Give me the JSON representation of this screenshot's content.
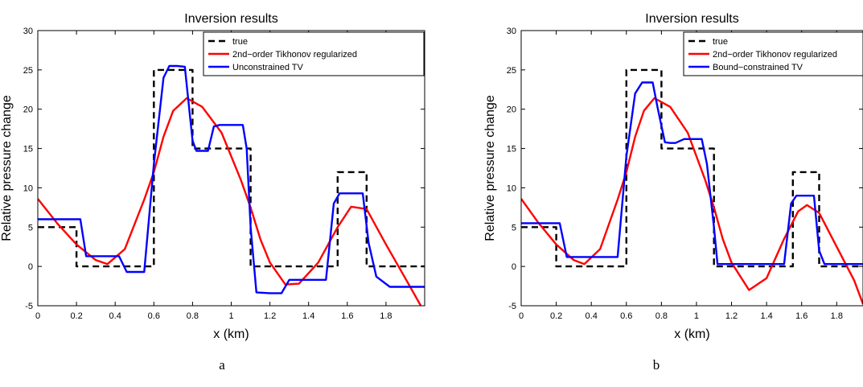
{
  "charts": [
    {
      "caption": "a",
      "chart_data": {
        "type": "line",
        "title": "Inversion results",
        "xlabel": "x (km)",
        "ylabel": "Relative pressure change",
        "xlim": [
          0,
          2.0
        ],
        "ylim": [
          -5,
          30
        ],
        "xticks": [
          0,
          0.2,
          0.4,
          0.6,
          0.8,
          1,
          1.2,
          1.4,
          1.6,
          1.8
        ],
        "yticks": [
          -5,
          0,
          5,
          10,
          15,
          20,
          25,
          30
        ],
        "grid": false,
        "legend": "top-right",
        "series": [
          {
            "name": "true",
            "color": "#000000",
            "style": "dashed",
            "x": [
              0,
              0.2,
              0.2,
              0.6,
              0.6,
              0.8,
              0.8,
              1.1,
              1.1,
              1.55,
              1.55,
              1.7,
              1.7,
              2.0
            ],
            "y": [
              5,
              5,
              0,
              0,
              25,
              25,
              15,
              15,
              0,
              0,
              12,
              12,
              0,
              0
            ]
          },
          {
            "name": "2nd−order Tikhonov regularized",
            "color": "#ff0000",
            "style": "solid",
            "x": [
              0,
              0.1,
              0.2,
              0.3,
              0.36,
              0.45,
              0.55,
              0.6,
              0.65,
              0.7,
              0.77,
              0.85,
              0.95,
              1.05,
              1.1,
              1.15,
              1.2,
              1.28,
              1.35,
              1.45,
              1.55,
              1.62,
              1.7,
              1.8,
              1.9,
              1.98
            ],
            "y": [
              8.6,
              5.5,
              2.8,
              0.8,
              0.3,
              2.2,
              8.5,
              12.0,
              16.5,
              19.8,
              21.4,
              20.3,
              17.0,
              11.0,
              7.5,
              3.5,
              0.5,
              -2.3,
              -2.2,
              0.5,
              5.0,
              7.6,
              7.3,
              2.8,
              -1.5,
              -5
            ]
          },
          {
            "name": "Unconstrained TV",
            "color": "#0000ff",
            "style": "solid",
            "x": [
              0,
              0.22,
              0.25,
              0.42,
              0.46,
              0.55,
              0.6,
              0.65,
              0.68,
              0.72,
              0.76,
              0.8,
              0.82,
              0.88,
              0.91,
              0.94,
              1.06,
              1.08,
              1.1,
              1.13,
              1.2,
              1.26,
              1.3,
              1.49,
              1.53,
              1.56,
              1.68,
              1.71,
              1.75,
              1.82,
              2.0
            ],
            "y": [
              6.0,
              6.0,
              1.3,
              1.3,
              -0.7,
              -0.7,
              13.0,
              24.0,
              25.5,
              25.5,
              25.4,
              16.0,
              14.7,
              14.7,
              17.8,
              18.0,
              18.0,
              15.0,
              5.0,
              -3.3,
              -3.4,
              -3.4,
              -1.7,
              -1.7,
              8.0,
              9.3,
              9.3,
              3.0,
              -1.3,
              -2.6,
              -2.6
            ]
          }
        ]
      }
    },
    {
      "caption": "b",
      "chart_data": {
        "type": "line",
        "title": "Inversion results",
        "xlabel": "x (km)",
        "ylabel": "Relative pressure change",
        "xlim": [
          0,
          1.95
        ],
        "ylim": [
          -5,
          30
        ],
        "xticks": [
          0,
          0.2,
          0.4,
          0.6,
          0.8,
          1,
          1.2,
          1.4,
          1.6,
          1.8
        ],
        "yticks": [
          -5,
          0,
          5,
          10,
          15,
          20,
          25,
          30
        ],
        "grid": false,
        "legend": "top-right",
        "series": [
          {
            "name": "true",
            "color": "#000000",
            "style": "dashed",
            "x": [
              0,
              0.2,
              0.2,
              0.6,
              0.6,
              0.8,
              0.8,
              1.1,
              1.1,
              1.55,
              1.55,
              1.7,
              1.7,
              1.95
            ],
            "y": [
              5,
              5,
              0,
              0,
              25,
              25,
              15,
              15,
              0,
              0,
              12,
              12,
              0,
              0
            ]
          },
          {
            "name": "2nd−order Tikhonov regularized",
            "color": "#ff0000",
            "style": "solid",
            "x": [
              0,
              0.1,
              0.2,
              0.3,
              0.36,
              0.45,
              0.55,
              0.6,
              0.65,
              0.7,
              0.76,
              0.85,
              0.95,
              1.05,
              1.1,
              1.15,
              1.2,
              1.3,
              1.4,
              1.5,
              1.58,
              1.63,
              1.7,
              1.8,
              1.9,
              1.95
            ],
            "y": [
              8.6,
              5.5,
              2.8,
              0.8,
              0.3,
              2.2,
              8.5,
              12.0,
              16.5,
              19.8,
              21.4,
              20.3,
              17.0,
              11.0,
              7.5,
              3.5,
              0.5,
              -3.0,
              -1.5,
              3.5,
              7.0,
              7.8,
              6.8,
              2.5,
              -1.8,
              -4.8
            ]
          },
          {
            "name": "Bound−constrained TV",
            "color": "#0000ff",
            "style": "solid",
            "x": [
              0,
              0.22,
              0.26,
              0.55,
              0.6,
              0.65,
              0.69,
              0.75,
              0.78,
              0.82,
              0.85,
              0.88,
              0.93,
              0.95,
              1.03,
              1.06,
              1.1,
              1.12,
              1.5,
              1.54,
              1.57,
              1.67,
              1.7,
              1.73,
              1.95
            ],
            "y": [
              5.5,
              5.5,
              1.2,
              1.2,
              14.0,
              22.0,
              23.4,
              23.4,
              20.0,
              15.8,
              15.7,
              15.7,
              16.2,
              16.2,
              16.2,
              13.0,
              5.0,
              0.3,
              0.3,
              8.0,
              9.0,
              9.0,
              2.0,
              0.3,
              0.3
            ]
          }
        ]
      }
    }
  ]
}
